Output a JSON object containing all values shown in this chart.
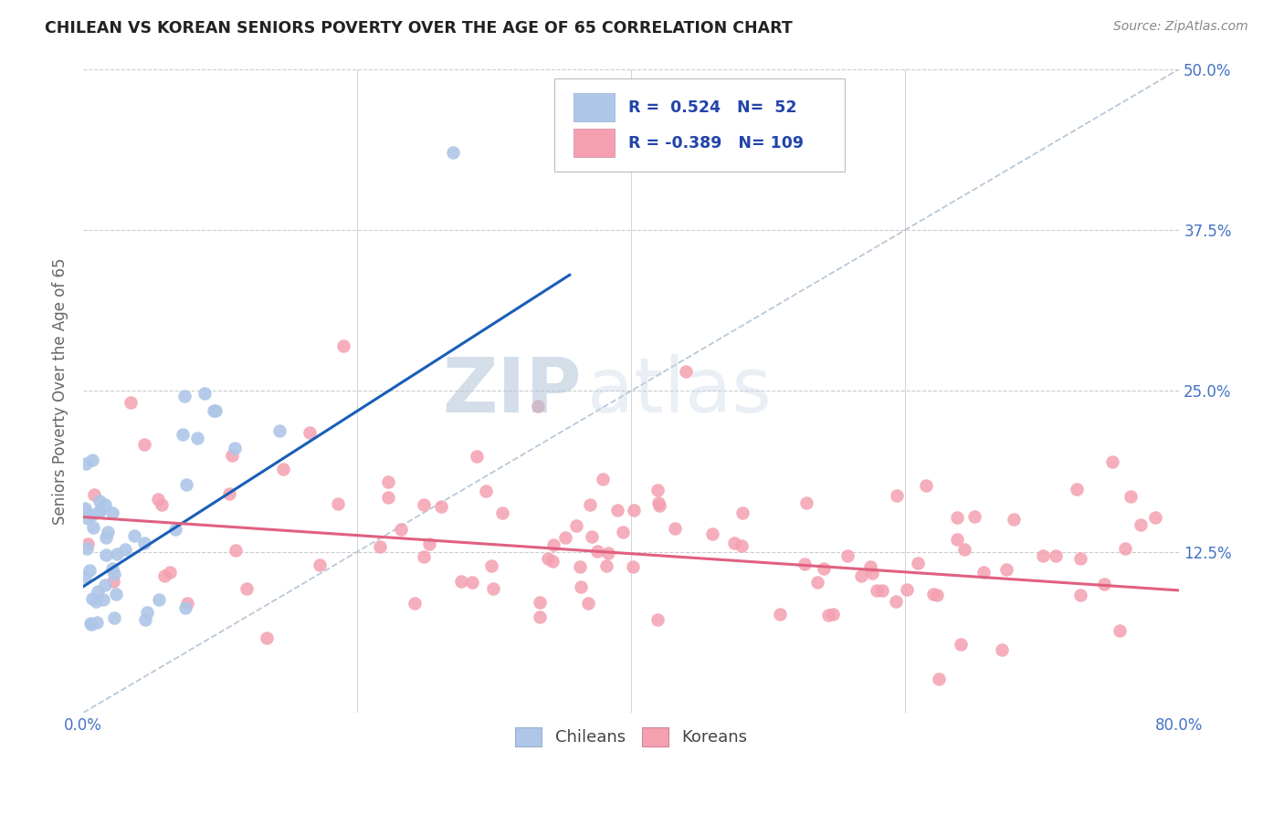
{
  "title": "CHILEAN VS KOREAN SENIORS POVERTY OVER THE AGE OF 65 CORRELATION CHART",
  "source": "Source: ZipAtlas.com",
  "ylabel": "Seniors Poverty Over the Age of 65",
  "xlim": [
    0.0,
    0.8
  ],
  "ylim": [
    0.0,
    0.5
  ],
  "yticks": [
    0.0,
    0.125,
    0.25,
    0.375,
    0.5
  ],
  "xticks": [
    0.0,
    0.2,
    0.4,
    0.6,
    0.8
  ],
  "grid_color": "#cccccc",
  "background_color": "#ffffff",
  "chilean_color": "#aec6e8",
  "korean_color": "#f4a0b0",
  "chilean_line_color": "#1a5eb8",
  "korean_line_color": "#e06080",
  "diagonal_color": "#b8c8d8",
  "R_chilean": 0.524,
  "N_chilean": 52,
  "R_korean": -0.389,
  "N_korean": 109,
  "legend_label_chilean": "Chileans",
  "legend_label_korean": "Koreans",
  "watermark_zip": "ZIP",
  "watermark_atlas": "atlas",
  "tick_color": "#4472c4",
  "title_color": "#222222",
  "source_color": "#888888",
  "ylabel_color": "#666666"
}
